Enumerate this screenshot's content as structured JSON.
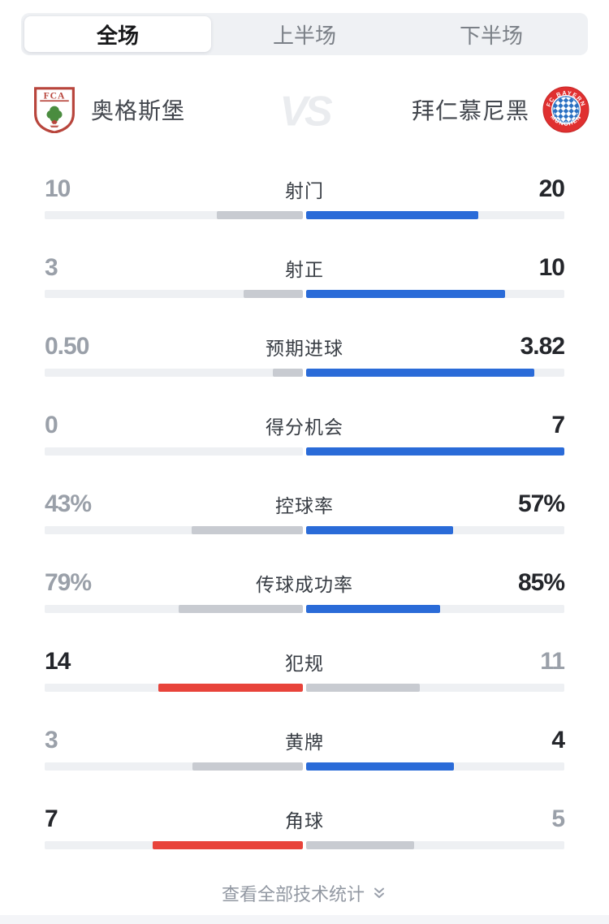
{
  "tabs": {
    "items": [
      {
        "label": "全场",
        "active": true
      },
      {
        "label": "上半场",
        "active": false
      },
      {
        "label": "下半场",
        "active": false
      }
    ]
  },
  "teams": {
    "home": {
      "name": "奥格斯堡",
      "logo_icon": "fc-augsburg-crest"
    },
    "away": {
      "name": "拜仁慕尼黑",
      "logo_icon": "fc-bayern-crest"
    },
    "versus_watermark": "VS"
  },
  "stats": {
    "rows": [
      {
        "label": "射门",
        "home": "10",
        "away": "20"
      },
      {
        "label": "射正",
        "home": "3",
        "away": "10"
      },
      {
        "label": "预期进球",
        "home": "0.50",
        "away": "3.82"
      },
      {
        "label": "得分机会",
        "home": "0",
        "away": "7"
      },
      {
        "label": "控球率",
        "home": "43%",
        "away": "57%"
      },
      {
        "label": "传球成功率",
        "home": "79%",
        "away": "85%"
      },
      {
        "label": "犯规",
        "home": "14",
        "away": "11"
      },
      {
        "label": "黄牌",
        "home": "3",
        "away": "4"
      },
      {
        "label": "角球",
        "home": "7",
        "away": "5"
      }
    ]
  },
  "footer": {
    "link_label": "查看全部技术统计",
    "icon": "double-chevron-down-icon"
  },
  "colors": {
    "home_accent": "#e8433a",
    "away_accent": "#2a6bd8",
    "loser_fill": "#c8cbd1",
    "track": "#eef0f3"
  }
}
